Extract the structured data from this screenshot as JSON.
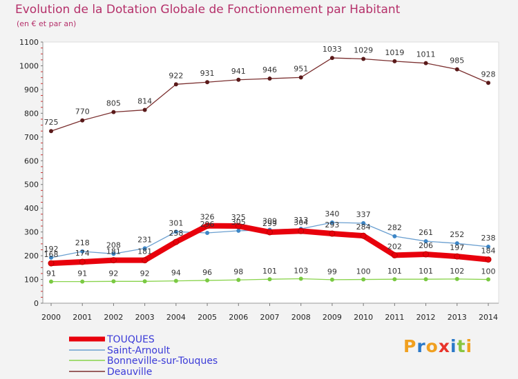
{
  "title": "Evolution de la Dotation Globale de Fonctionnement par Habitant",
  "subtitle": "(en € et par an)",
  "logo": "Proxiti",
  "chart_data": {
    "type": "line",
    "title": "Evolution de la Dotation Globale de Fonctionnement par Habitant",
    "ylabel": "(en € et par an)",
    "xlabel": "",
    "ylim": [
      0,
      1100
    ],
    "yticks": [
      0,
      100,
      200,
      300,
      400,
      500,
      600,
      700,
      800,
      900,
      1000,
      1100
    ],
    "categories": [
      "2000",
      "2001",
      "2002",
      "2003",
      "2004",
      "2005",
      "2006",
      "2007",
      "2008",
      "2009",
      "2010",
      "2011",
      "2012",
      "2013",
      "2014"
    ],
    "series": [
      {
        "name": "TOUQUES",
        "color": "#e8000c",
        "values": [
          168,
          174,
          181,
          181,
          258,
          326,
          325,
          299,
          304,
          293,
          284,
          202,
          206,
          197,
          184
        ]
      },
      {
        "name": "Saint-Arnoult",
        "color": "#6a9fd0",
        "values": [
          192,
          218,
          208,
          231,
          301,
          296,
          305,
          309,
          313,
          340,
          337,
          282,
          261,
          252,
          238
        ]
      },
      {
        "name": "Bonneville-sur-Touques",
        "color": "#88d34a",
        "values": [
          91,
          91,
          92,
          92,
          94,
          96,
          98,
          101,
          103,
          99,
          100,
          101,
          101,
          102,
          100
        ]
      },
      {
        "name": "Deauville",
        "color": "#7a2e2e",
        "values": [
          725,
          770,
          805,
          814,
          922,
          931,
          941,
          946,
          951,
          1033,
          1029,
          1019,
          1011,
          985,
          928
        ]
      }
    ]
  }
}
